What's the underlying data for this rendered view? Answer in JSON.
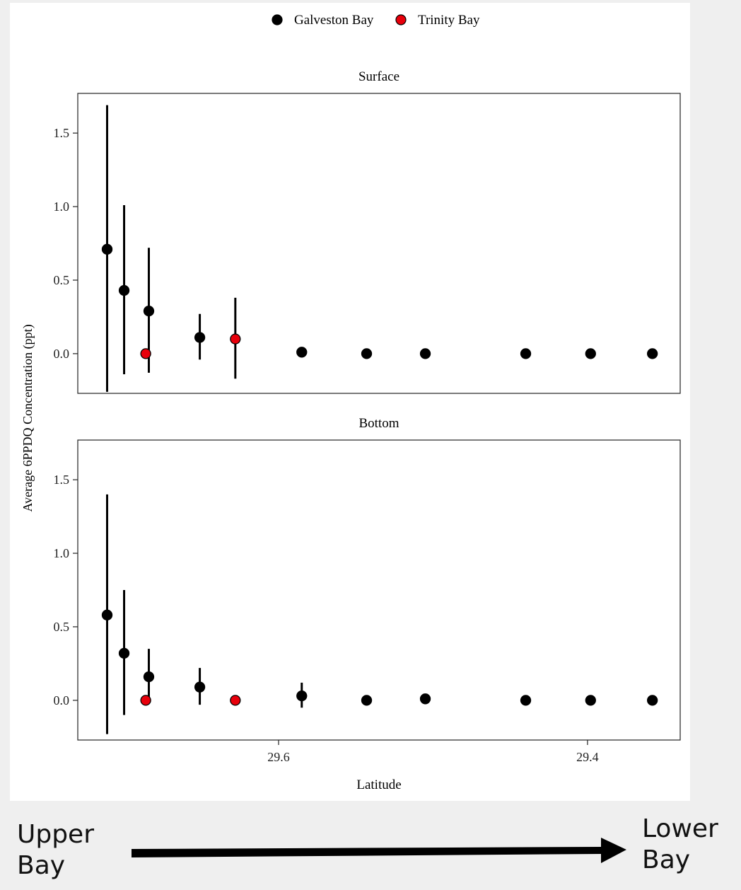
{
  "chart_data": {
    "type": "scatter",
    "subtype": "point-with-error-bars, faceted",
    "ylabel": "Average 6PPDQ Concentration (ppt)",
    "xlabel": "Latitude",
    "x_reversed": true,
    "xlim": [
      29.34,
      29.73
    ],
    "ylim": [
      -0.27,
      1.77
    ],
    "x_ticks": [
      29.6,
      29.4
    ],
    "x_tick_labels": [
      "29.6",
      "29.4"
    ],
    "y_ticks": [
      0.0,
      0.5,
      1.0,
      1.5
    ],
    "y_tick_labels": [
      "0.0",
      "0.5",
      "1.0",
      "1.5"
    ],
    "legend_position": "top",
    "series_colors": {
      "Galveston Bay": "#000000",
      "Trinity Bay": "#e8000b"
    },
    "legend": [
      {
        "name": "Galveston Bay",
        "color": "#000000"
      },
      {
        "name": "Trinity Bay",
        "color": "#e8000b"
      }
    ],
    "panels": [
      {
        "title": "Surface",
        "points": [
          {
            "series": "Galveston Bay",
            "x": 29.711,
            "y": 0.71,
            "lo": -0.26,
            "hi": 1.69
          },
          {
            "series": "Galveston Bay",
            "x": 29.7,
            "y": 0.43,
            "lo": -0.14,
            "hi": 1.01
          },
          {
            "series": "Galveston Bay",
            "x": 29.684,
            "y": 0.29,
            "lo": -0.13,
            "hi": 0.72
          },
          {
            "series": "Trinity Bay",
            "x": 29.686,
            "y": 0.0
          },
          {
            "series": "Galveston Bay",
            "x": 29.651,
            "y": 0.11,
            "lo": -0.04,
            "hi": 0.27
          },
          {
            "series": "Trinity Bay",
            "x": 29.628,
            "y": 0.1,
            "lo": -0.17,
            "hi": 0.38
          },
          {
            "series": "Galveston Bay",
            "x": 29.585,
            "y": 0.01
          },
          {
            "series": "Galveston Bay",
            "x": 29.543,
            "y": 0.0
          },
          {
            "series": "Galveston Bay",
            "x": 29.505,
            "y": 0.0
          },
          {
            "series": "Galveston Bay",
            "x": 29.44,
            "y": 0.0
          },
          {
            "series": "Galveston Bay",
            "x": 29.398,
            "y": 0.0
          },
          {
            "series": "Galveston Bay",
            "x": 29.358,
            "y": 0.0
          }
        ]
      },
      {
        "title": "Bottom",
        "points": [
          {
            "series": "Galveston Bay",
            "x": 29.711,
            "y": 0.58,
            "lo": -0.23,
            "hi": 1.4
          },
          {
            "series": "Galveston Bay",
            "x": 29.7,
            "y": 0.32,
            "lo": -0.1,
            "hi": 0.75
          },
          {
            "series": "Galveston Bay",
            "x": 29.684,
            "y": 0.16,
            "lo": -0.02,
            "hi": 0.35
          },
          {
            "series": "Trinity Bay",
            "x": 29.686,
            "y": 0.0
          },
          {
            "series": "Galveston Bay",
            "x": 29.651,
            "y": 0.09,
            "lo": -0.03,
            "hi": 0.22
          },
          {
            "series": "Trinity Bay",
            "x": 29.628,
            "y": 0.0
          },
          {
            "series": "Galveston Bay",
            "x": 29.585,
            "y": 0.03,
            "lo": -0.05,
            "hi": 0.12
          },
          {
            "series": "Galveston Bay",
            "x": 29.543,
            "y": 0.0
          },
          {
            "series": "Galveston Bay",
            "x": 29.505,
            "y": 0.01
          },
          {
            "series": "Galveston Bay",
            "x": 29.44,
            "y": 0.0
          },
          {
            "series": "Galveston Bay",
            "x": 29.398,
            "y": 0.0
          },
          {
            "series": "Galveston Bay",
            "x": 29.358,
            "y": 0.0
          }
        ]
      }
    ]
  },
  "annotations": {
    "left_label": "Upper\nBay",
    "right_label": "Lower\nBay",
    "arrow_direction": "right"
  }
}
